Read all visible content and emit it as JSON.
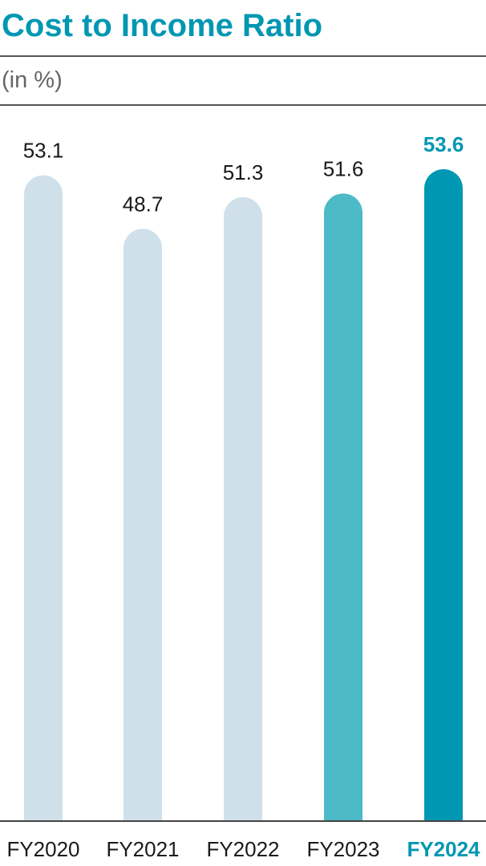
{
  "title": "Cost to Income Ratio",
  "subtitle": "(in %)",
  "chart_data": {
    "type": "bar",
    "title": "Cost to Income Ratio",
    "subtitle": "(in %)",
    "xlabel": "",
    "ylabel": "",
    "categories": [
      "FY2020",
      "FY2021",
      "FY2022",
      "FY2023",
      "FY2024"
    ],
    "values": [
      53.1,
      48.7,
      51.3,
      51.6,
      53.6
    ],
    "value_labels": [
      "53.1",
      "48.7",
      "51.3",
      "51.6",
      "53.6"
    ],
    "highlight_index": 4,
    "ylim": [
      0,
      53.6
    ],
    "grid": false,
    "legend": "none",
    "colors": {
      "default": "#cfe0ea",
      "FY2023": "#4dbac8",
      "FY2024": "#0097b2",
      "label": "#1a1a1a",
      "highlight_label": "#0097b2"
    }
  }
}
